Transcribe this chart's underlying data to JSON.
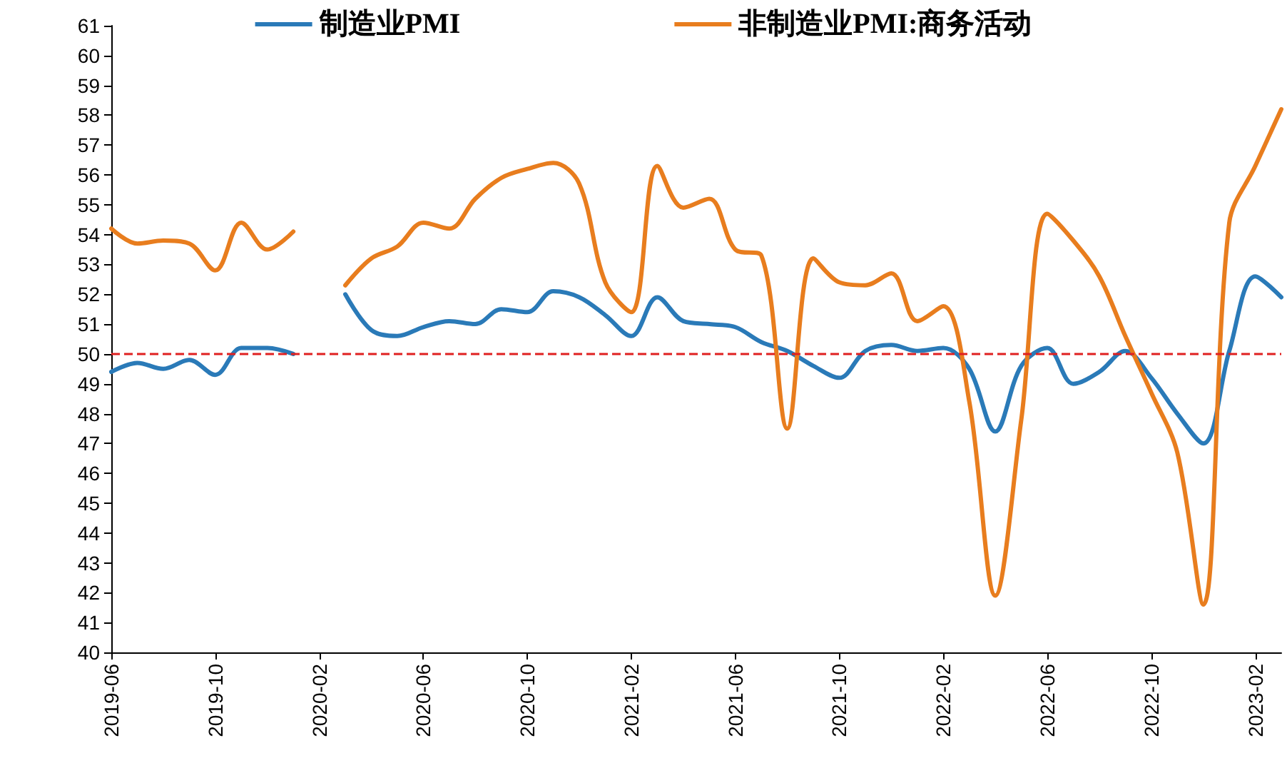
{
  "chart_data": {
    "type": "line",
    "categories": [
      "2019-06",
      null,
      null,
      null,
      "2019-10",
      null,
      null,
      null,
      "2020-02",
      null,
      null,
      null,
      "2020-06",
      null,
      null,
      null,
      "2020-10",
      null,
      null,
      null,
      "2021-02",
      null,
      null,
      null,
      "2021-06",
      null,
      null,
      null,
      "2021-10",
      null,
      null,
      null,
      "2022-02",
      null,
      null,
      null,
      "2022-06",
      null,
      null,
      null,
      "2022-10",
      null,
      null,
      null,
      "2023-02",
      null
    ],
    "series": [
      {
        "name": "制造业PMI",
        "color": "#2a7ab8",
        "values": [
          49.4,
          49.7,
          49.5,
          49.8,
          49.3,
          50.2,
          50.2,
          50.0,
          null,
          52.0,
          50.8,
          50.6,
          50.9,
          51.1,
          51.0,
          51.5,
          51.4,
          52.1,
          51.9,
          51.3,
          50.6,
          51.9,
          51.1,
          51.0,
          50.9,
          50.4,
          50.1,
          49.6,
          49.2,
          50.1,
          50.3,
          50.1,
          50.2,
          49.5,
          47.4,
          49.6,
          50.2,
          49.0,
          49.4,
          50.1,
          49.2,
          48.0,
          47.0,
          50.1,
          52.6,
          51.9
        ]
      },
      {
        "name": "非制造业PMI:商务活动",
        "color": "#e87d1e",
        "values": [
          54.2,
          53.7,
          53.8,
          53.7,
          52.8,
          54.4,
          53.5,
          54.1,
          null,
          52.3,
          53.2,
          53.6,
          54.4,
          54.2,
          55.2,
          55.9,
          56.2,
          56.4,
          55.7,
          52.4,
          51.4,
          56.3,
          54.9,
          55.2,
          53.5,
          53.3,
          47.5,
          53.2,
          52.4,
          52.3,
          52.7,
          51.1,
          51.6,
          48.4,
          41.9,
          47.8,
          54.7,
          53.8,
          52.6,
          50.6,
          48.7,
          46.7,
          41.6,
          54.4,
          56.3,
          58.2
        ]
      }
    ],
    "ylim": [
      40,
      61
    ],
    "yticks": [
      40,
      41,
      42,
      43,
      44,
      45,
      46,
      47,
      48,
      49,
      50,
      51,
      52,
      53,
      54,
      55,
      56,
      57,
      58,
      59,
      60,
      61
    ],
    "ref_lines": [
      {
        "axis": "y",
        "value": 50,
        "color": "#e02020",
        "line_style": "dashed"
      }
    ],
    "grid": false,
    "legend": "top",
    "line_style": "solid",
    "marker": "none"
  }
}
